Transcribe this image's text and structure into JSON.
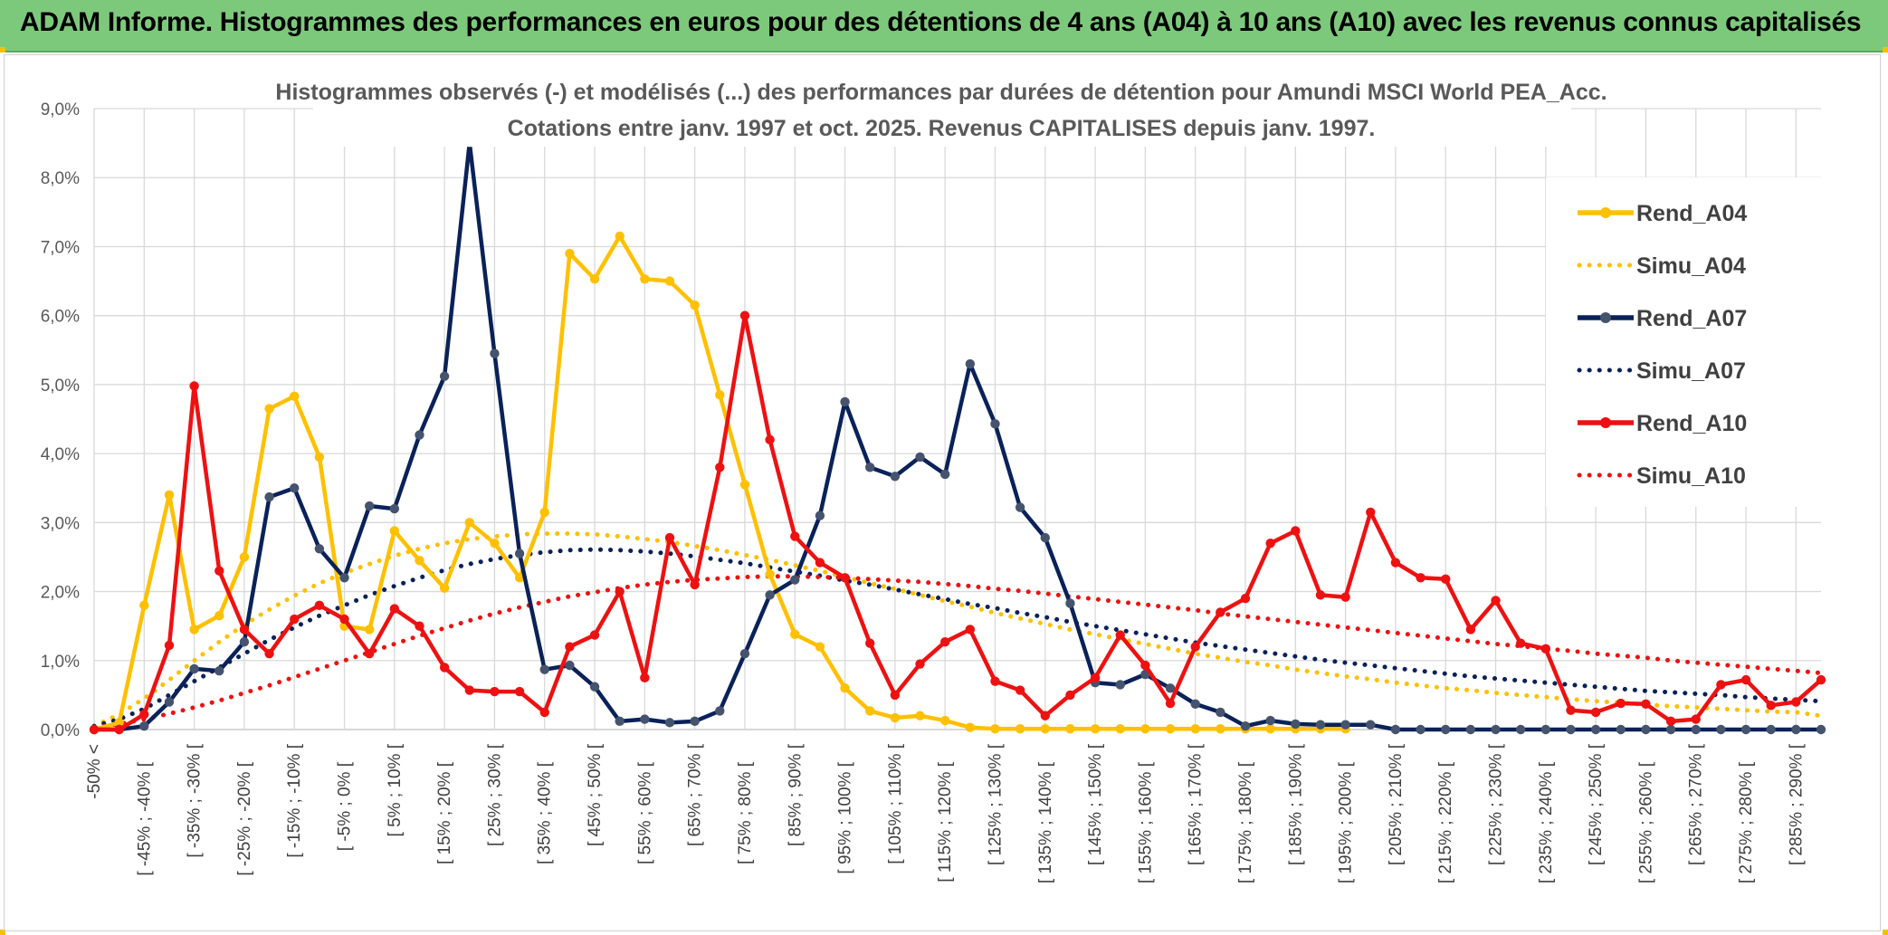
{
  "header": {
    "title": "ADAM Informe. Histogrammes des performances en euros pour des détentions de 4 ans (A04) à 10 ans (A10) avec les revenus connus capitalisés"
  },
  "chart_data": {
    "type": "line",
    "title": "Histogrammes observés (-) et modélisés (...) des performances par durées de détention pour Amundi MSCI World PEA_Acc.",
    "subtitle": "Cotations entre janv. 1997 et oct. 2025. Revenus CAPITALISES depuis janv. 1997.",
    "ylim": [
      0,
      9
    ],
    "yticks": [
      "0,0%",
      "1,0%",
      "2,0%",
      "3,0%",
      "4,0%",
      "5,0%",
      "6,0%",
      "7,0%",
      "8,0%",
      "9,0%"
    ],
    "categories_shown": [
      "-50% <",
      "[ -45% ; -40% [",
      "[ -35% ; -30% [",
      "[ -25% ; -20% [",
      "[ -15% ; -10% [",
      "[ -5% ; 0% [",
      "[ 5% ; 10% [",
      "[ 15% ; 20% [",
      "[ 25% ; 30% [",
      "[ 35% ; 40% [",
      "[ 45% ; 50% [",
      "[ 55% ; 60% [",
      "[ 65% ; 70% [",
      "[ 75% ; 80% [",
      "[ 85% ; 90% [",
      "[ 95% ; 100% [",
      "[ 105% ; 110% [",
      "[ 115% ; 120% [",
      "[ 125% ; 130% [",
      "[ 135% ; 140% [",
      "[ 145% ; 150% [",
      "[ 155% ; 160% [",
      "[ 165% ; 170% [",
      "[ 175% ; 180% [",
      "[ 185% ; 190% [",
      "[ 195% ; 200% [",
      "[ 205% ; 210% [",
      "[ 215% ; 220% [",
      "[ 225% ; 230% [",
      "[ 235% ; 240% [",
      "[ 245% ; 250% [",
      "[ 255% ; 260% [",
      "[ 265% ; 270% [",
      "[ 275% ; 280% [",
      "[ 285% ; 290% ["
    ],
    "x": [
      -50,
      -45,
      -40,
      -35,
      -30,
      -25,
      -20,
      -15,
      -10,
      -5,
      0,
      5,
      10,
      15,
      20,
      25,
      30,
      35,
      40,
      45,
      50,
      55,
      60,
      65,
      70,
      75,
      80,
      85,
      90,
      95,
      100,
      105,
      110,
      115,
      120,
      125,
      130,
      135,
      140,
      145,
      150,
      155,
      160,
      165,
      170,
      175,
      180,
      185,
      190,
      195,
      200,
      205,
      210,
      215,
      220,
      225,
      230,
      235,
      240,
      245,
      250,
      255,
      260,
      265,
      270,
      275,
      280,
      285,
      290,
      295
    ],
    "series": [
      {
        "name": "Rend_A04",
        "style": "solid",
        "color": "#ffc000",
        "values": [
          0,
          0.1,
          1.8,
          3.4,
          1.45,
          1.65,
          2.5,
          4.65,
          4.83,
          3.95,
          1.5,
          1.45,
          2.88,
          2.45,
          2.05,
          3.0,
          2.7,
          2.2,
          3.15,
          6.9,
          6.53,
          7.15,
          6.53,
          6.5,
          6.15,
          4.85,
          3.55,
          2.25,
          1.38,
          1.2,
          0.6,
          0.27,
          0.17,
          0.2,
          0.13,
          0.03,
          0.01,
          0.01,
          0.01,
          0.01,
          0.01,
          0.01,
          0.01,
          0.01,
          0.01,
          0.01,
          0.01,
          0.01,
          0.01,
          0.01,
          0.01,
          null,
          null,
          null,
          null,
          null,
          null,
          null,
          null,
          null,
          null,
          null,
          null,
          null,
          null,
          null,
          null,
          null,
          null,
          null
        ]
      },
      {
        "name": "Simu_A04",
        "style": "dotted",
        "color": "#ffc000",
        "values": [
          0.05,
          0.22,
          0.45,
          0.72,
          1.0,
          1.27,
          1.52,
          1.74,
          1.94,
          2.12,
          2.27,
          2.4,
          2.52,
          2.62,
          2.7,
          2.76,
          2.8,
          2.83,
          2.84,
          2.84,
          2.83,
          2.8,
          2.76,
          2.72,
          2.66,
          2.6,
          2.53,
          2.46,
          2.38,
          2.3,
          2.21,
          2.12,
          2.04,
          1.95,
          1.86,
          1.78,
          1.69,
          1.61,
          1.53,
          1.45,
          1.38,
          1.31,
          1.24,
          1.17,
          1.1,
          1.04,
          0.98,
          0.93,
          0.87,
          0.82,
          0.77,
          0.73,
          0.68,
          0.64,
          0.6,
          0.57,
          0.53,
          0.5,
          0.47,
          0.44,
          0.41,
          0.39,
          0.36,
          0.34,
          0.32,
          0.3,
          0.28,
          0.26,
          0.25,
          0.2
        ]
      },
      {
        "name": "Rend_A07",
        "style": "solid",
        "color": "#0a2159",
        "values": [
          0,
          0,
          0.05,
          0.4,
          0.88,
          0.85,
          1.27,
          3.37,
          3.5,
          2.62,
          2.2,
          3.24,
          3.2,
          4.27,
          5.12,
          8.5,
          5.45,
          2.55,
          0.87,
          0.93,
          0.62,
          0.12,
          0.15,
          0.1,
          0.12,
          0.27,
          1.1,
          1.95,
          2.17,
          3.1,
          4.75,
          3.8,
          3.67,
          3.95,
          3.7,
          5.3,
          4.43,
          3.22,
          2.78,
          1.83,
          0.68,
          0.65,
          0.8,
          0.6,
          0.37,
          0.25,
          0.05,
          0.13,
          0.08,
          0.07,
          0.07,
          0.07,
          0,
          0,
          0,
          0,
          0,
          0,
          0,
          0,
          0,
          0,
          0,
          0,
          0,
          0,
          0,
          0,
          0,
          0
        ]
      },
      {
        "name": "Simu_A07",
        "style": "dotted",
        "color": "#0a2159",
        "values": [
          0.05,
          0.15,
          0.3,
          0.5,
          0.7,
          0.9,
          1.1,
          1.3,
          1.48,
          1.65,
          1.8,
          1.95,
          2.08,
          2.2,
          2.31,
          2.4,
          2.47,
          2.53,
          2.57,
          2.6,
          2.61,
          2.6,
          2.58,
          2.55,
          2.51,
          2.46,
          2.41,
          2.35,
          2.29,
          2.23,
          2.16,
          2.1,
          2.03,
          1.96,
          1.89,
          1.82,
          1.76,
          1.69,
          1.63,
          1.56,
          1.5,
          1.44,
          1.38,
          1.32,
          1.26,
          1.21,
          1.16,
          1.11,
          1.06,
          1.01,
          0.97,
          0.93,
          0.89,
          0.85,
          0.81,
          0.77,
          0.74,
          0.71,
          0.68,
          0.65,
          0.62,
          0.59,
          0.56,
          0.54,
          0.52,
          0.5,
          0.47,
          0.45,
          0.43,
          0.41
        ]
      },
      {
        "name": "Rend_A10",
        "style": "solid",
        "color": "#ee1111",
        "values": [
          0,
          0,
          0.22,
          1.22,
          4.98,
          2.3,
          1.45,
          1.1,
          1.6,
          1.8,
          1.6,
          1.1,
          1.75,
          1.5,
          0.9,
          0.57,
          0.55,
          0.55,
          0.25,
          1.2,
          1.37,
          2.0,
          0.75,
          2.78,
          2.1,
          3.8,
          6.0,
          4.2,
          2.8,
          2.42,
          2.2,
          1.25,
          0.5,
          0.95,
          1.27,
          1.45,
          0.7,
          0.57,
          0.2,
          0.5,
          0.75,
          1.37,
          0.93,
          0.38,
          1.2,
          1.7,
          1.9,
          2.7,
          2.88,
          1.95,
          1.92,
          3.15,
          2.42,
          2.2,
          2.18,
          1.45,
          1.87,
          1.25,
          1.17,
          0.28,
          0.25,
          0.38,
          0.37,
          0.12,
          0.15,
          0.65,
          0.72,
          0.35,
          0.4,
          0.72
        ]
      },
      {
        "name": "Simu_A10",
        "style": "dotted",
        "color": "#ee1111",
        "values": [
          0.03,
          0.08,
          0.15,
          0.23,
          0.32,
          0.42,
          0.53,
          0.64,
          0.76,
          0.88,
          1.0,
          1.12,
          1.24,
          1.36,
          1.47,
          1.58,
          1.68,
          1.77,
          1.85,
          1.93,
          1.99,
          2.05,
          2.1,
          2.14,
          2.17,
          2.19,
          2.21,
          2.22,
          2.22,
          2.21,
          2.2,
          2.18,
          2.16,
          2.14,
          2.11,
          2.08,
          2.04,
          2.01,
          1.97,
          1.93,
          1.89,
          1.85,
          1.81,
          1.77,
          1.73,
          1.68,
          1.64,
          1.6,
          1.56,
          1.52,
          1.48,
          1.44,
          1.4,
          1.36,
          1.32,
          1.28,
          1.24,
          1.21,
          1.17,
          1.14,
          1.1,
          1.07,
          1.04,
          1.0,
          0.97,
          0.94,
          0.91,
          0.88,
          0.85,
          0.82
        ]
      }
    ],
    "grid": true,
    "legend": "right"
  }
}
